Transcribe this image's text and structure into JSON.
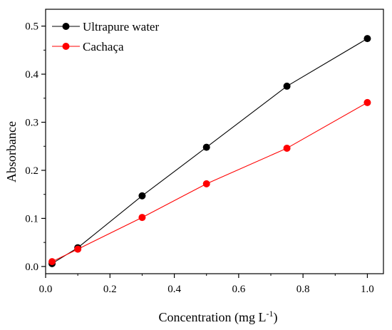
{
  "chart_data": {
    "type": "line",
    "title": "",
    "xlabel": "Concentration (mg L",
    "xlabel_superscript": "-1",
    "xlabel_suffix": ")",
    "ylabel": "Absorbance",
    "xlim": [
      0,
      1.05
    ],
    "ylim": [
      -0.015,
      0.535
    ],
    "xticks": [
      0.0,
      0.2,
      0.4,
      0.6,
      0.8,
      1.0
    ],
    "xtick_labels": [
      "0.0",
      "0.2",
      "0.4",
      "0.6",
      "0.8",
      "1.0"
    ],
    "yticks": [
      0.0,
      0.1,
      0.2,
      0.3,
      0.4,
      0.5
    ],
    "ytick_labels": [
      "0.0",
      "0.1",
      "0.2",
      "0.3",
      "0.4",
      "0.5"
    ],
    "grid": false,
    "legend_position": "top-left",
    "x": [
      0.02,
      0.1,
      0.3,
      0.5,
      0.75,
      1.0
    ],
    "series": [
      {
        "name": "Ultrapure water",
        "color": "#000000",
        "marker": "circle",
        "values": [
          0.006,
          0.039,
          0.147,
          0.248,
          0.375,
          0.474
        ]
      },
      {
        "name": "Cachaça",
        "color": "#ff0000",
        "marker": "circle",
        "values": [
          0.01,
          0.036,
          0.102,
          0.172,
          0.246,
          0.341
        ]
      }
    ]
  }
}
